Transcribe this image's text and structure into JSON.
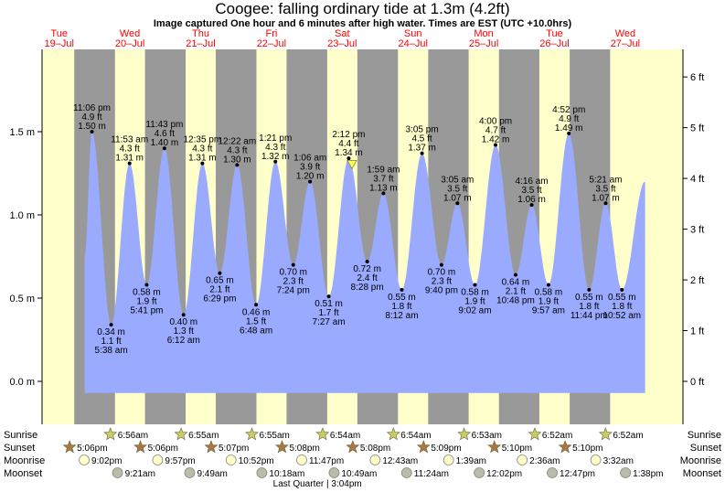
{
  "header": {
    "title": "Coogee: falling  ordinary tide at 1.3m (4.2ft)",
    "subtitle": "Image captured One hour and 6 minutes after high water. Times are EST (UTC +10.0hrs)"
  },
  "colors": {
    "night": "#999999",
    "day": "#ffffcc",
    "tide_fill": "#99aaff",
    "date_text": "#ff0000",
    "sun_star": "#cccc66",
    "sunset_star": "#aa7744",
    "moonrise": "#ffffcc",
    "moonset": "#bbbbaa"
  },
  "days": [
    {
      "dow": "Tue",
      "date": "19–Jul"
    },
    {
      "dow": "Wed",
      "date": "20–Jul"
    },
    {
      "dow": "Thu",
      "date": "21–Jul"
    },
    {
      "dow": "Fri",
      "date": "22–Jul"
    },
    {
      "dow": "Sat",
      "date": "23–Jul"
    },
    {
      "dow": "Sun",
      "date": "24–Jul"
    },
    {
      "dow": "Mon",
      "date": "25–Jul"
    },
    {
      "dow": "Tue",
      "date": "26–Jul"
    },
    {
      "dow": "Wed",
      "date": "27–Jul"
    }
  ],
  "chart_data": {
    "type": "area",
    "title": "Coogee: falling  ordinary tide at 1.3m (4.2ft)",
    "ylabel_left": "m",
    "ylabel_right": "ft",
    "ylim_m": [
      -0.2,
      2.05
    ],
    "y_ticks_m": [
      "0.0 m",
      "0.5 m",
      "1.0 m",
      "1.5 m"
    ],
    "y_ticks_ft": [
      "0 ft",
      "1 ft",
      "2 ft",
      "3 ft",
      "4 ft",
      "5 ft",
      "6 ft"
    ],
    "x_range_days": [
      0,
      9
    ],
    "tides": [
      {
        "t": "11:06 pm",
        "ft": "4.9 ft",
        "m": "1.50 m",
        "v": 1.5,
        "day": 0.963,
        "type": "high"
      },
      {
        "t": "5:38 am",
        "ft": "1.1 ft",
        "m": "0.34 m",
        "v": 0.34,
        "day": 1.235,
        "type": "low"
      },
      {
        "t": "11:53 am",
        "ft": "4.3 ft",
        "m": "1.31 m",
        "v": 1.31,
        "day": 1.495,
        "type": "high"
      },
      {
        "t": "5:41 pm",
        "ft": "1.9 ft",
        "m": "0.58 m",
        "v": 0.58,
        "day": 1.737,
        "type": "low"
      },
      {
        "t": "11:43 pm",
        "ft": "4.6 ft",
        "m": "1.40 m",
        "v": 1.4,
        "day": 1.988,
        "type": "high"
      },
      {
        "t": "6:12 am",
        "ft": "1.3 ft",
        "m": "0.40 m",
        "v": 0.4,
        "day": 2.258,
        "type": "low"
      },
      {
        "t": "12:35 pm",
        "ft": "4.3 ft",
        "m": "1.31 m",
        "v": 1.31,
        "day": 2.524,
        "type": "high"
      },
      {
        "t": "6:29 pm",
        "ft": "2.1 ft",
        "m": "0.65 m",
        "v": 0.65,
        "day": 2.77,
        "type": "low"
      },
      {
        "t": "12:22 am",
        "ft": "4.3 ft",
        "m": "1.30 m",
        "v": 1.3,
        "day": 3.015,
        "type": "high"
      },
      {
        "t": "6:48 am",
        "ft": "1.5 ft",
        "m": "0.46 m",
        "v": 0.46,
        "day": 3.283,
        "type": "low"
      },
      {
        "t": "1:21 pm",
        "ft": "4.3 ft",
        "m": "1.32 m",
        "v": 1.32,
        "day": 3.556,
        "type": "high"
      },
      {
        "t": "7:24 pm",
        "ft": "2.3 ft",
        "m": "0.70 m",
        "v": 0.7,
        "day": 3.808,
        "type": "low"
      },
      {
        "t": "1:06 am",
        "ft": "3.9 ft",
        "m": "1.20 m",
        "v": 1.2,
        "day": 4.046,
        "type": "high"
      },
      {
        "t": "7:27 am",
        "ft": "1.7 ft",
        "m": "0.51 m",
        "v": 0.51,
        "day": 4.31,
        "type": "low"
      },
      {
        "t": "2:12 pm",
        "ft": "4.4 ft",
        "m": "1.34 m",
        "v": 1.34,
        "day": 4.592,
        "type": "high"
      },
      {
        "t": "8:28 pm",
        "ft": "2.4 ft",
        "m": "0.72 m",
        "v": 0.72,
        "day": 4.853,
        "type": "low"
      },
      {
        "t": "1:59 am",
        "ft": "3.7 ft",
        "m": "1.13 m",
        "v": 1.13,
        "day": 5.083,
        "type": "high"
      },
      {
        "t": "8:12 am",
        "ft": "1.8 ft",
        "m": "0.55 m",
        "v": 0.55,
        "day": 5.342,
        "type": "low"
      },
      {
        "t": "3:05 pm",
        "ft": "4.5 ft",
        "m": "1.37 m",
        "v": 1.37,
        "day": 5.628,
        "type": "high"
      },
      {
        "t": "9:40 pm",
        "ft": "2.3 ft",
        "m": "0.70 m",
        "v": 0.7,
        "day": 5.903,
        "type": "low"
      },
      {
        "t": "3:05 am",
        "ft": "3.5 ft",
        "m": "1.07 m",
        "v": 1.07,
        "day": 6.128,
        "type": "high"
      },
      {
        "t": "9:02 am",
        "ft": "1.9 ft",
        "m": "0.58 m",
        "v": 0.58,
        "day": 6.376,
        "type": "low"
      },
      {
        "t": "4:00 pm",
        "ft": "4.7 ft",
        "m": "1.42 m",
        "v": 1.42,
        "day": 6.667,
        "type": "high"
      },
      {
        "t": "10:48 pm",
        "ft": "2.1 ft",
        "m": "0.64 m",
        "v": 0.64,
        "day": 6.95,
        "type": "low"
      },
      {
        "t": "4:16 am",
        "ft": "3.5 ft",
        "m": "1.06 m",
        "v": 1.06,
        "day": 7.178,
        "type": "high"
      },
      {
        "t": "9:57 am",
        "ft": "1.9 ft",
        "m": "0.58 m",
        "v": 0.58,
        "day": 7.415,
        "type": "low"
      },
      {
        "t": "4:52 pm",
        "ft": "4.9 ft",
        "m": "1.49 m",
        "v": 1.49,
        "day": 7.703,
        "type": "high"
      },
      {
        "t": "11:44 pm",
        "ft": "1.8 ft",
        "m": "0.55 m",
        "v": 0.55,
        "day": 7.989,
        "type": "low"
      },
      {
        "t": "5:21 am",
        "ft": "3.5 ft",
        "m": "1.07 m",
        "v": 1.07,
        "day": 8.223,
        "type": "high"
      },
      {
        "t": "10:52 am",
        "ft": "1.8 ft",
        "m": "0.55 m",
        "v": 0.55,
        "day": 8.453,
        "type": "low"
      }
    ],
    "current": {
      "day": 4.638,
      "v": 1.3
    }
  },
  "astro": {
    "labels": {
      "sunrise": "Sunrise",
      "sunset": "Sunset",
      "moonrise": "Moonrise",
      "moonset": "Moonset"
    },
    "sunrise": [
      {
        "day": 1.289,
        "t": "6:56am"
      },
      {
        "day": 2.288,
        "t": "6:55am"
      },
      {
        "day": 3.288,
        "t": "6:55am"
      },
      {
        "day": 4.288,
        "t": "6:54am"
      },
      {
        "day": 5.288,
        "t": "6:54am"
      },
      {
        "day": 6.287,
        "t": "6:53am"
      },
      {
        "day": 7.286,
        "t": "6:52am"
      },
      {
        "day": 8.286,
        "t": "6:52am"
      }
    ],
    "sunset": [
      {
        "day": 0.713,
        "t": "5:06pm"
      },
      {
        "day": 1.713,
        "t": "5:06pm"
      },
      {
        "day": 2.713,
        "t": "5:07pm"
      },
      {
        "day": 3.714,
        "t": "5:08pm"
      },
      {
        "day": 4.714,
        "t": "5:08pm"
      },
      {
        "day": 5.715,
        "t": "5:09pm"
      },
      {
        "day": 6.715,
        "t": "5:10pm"
      },
      {
        "day": 7.715,
        "t": "5:10pm"
      }
    ],
    "moonrise": [
      {
        "day": 0.918,
        "t": "9:02pm"
      },
      {
        "day": 1.956,
        "t": "9:57pm"
      },
      {
        "day": 2.994,
        "t": "10:52pm"
      },
      {
        "day": 3.992,
        "t": "11:47pm"
      },
      {
        "day": 5.03,
        "t": "12:43am"
      },
      {
        "day": 6.068,
        "t": "1:39am"
      },
      {
        "day": 7.108,
        "t": "2:36am"
      },
      {
        "day": 8.147,
        "t": "3:32am"
      }
    ],
    "moonset": [
      {
        "day": 1.39,
        "t": "9:21am"
      },
      {
        "day": 2.409,
        "t": "9:49am"
      },
      {
        "day": 3.429,
        "t": "10:18am"
      },
      {
        "day": 4.45,
        "t": "10:49am"
      },
      {
        "day": 5.475,
        "t": "11:24am"
      },
      {
        "day": 6.501,
        "t": "12:02pm"
      },
      {
        "day": 7.533,
        "t": "12:47pm"
      },
      {
        "day": 8.568,
        "t": "1:38pm"
      }
    ],
    "moon_phase": "Last Quarter | 3:04pm"
  }
}
